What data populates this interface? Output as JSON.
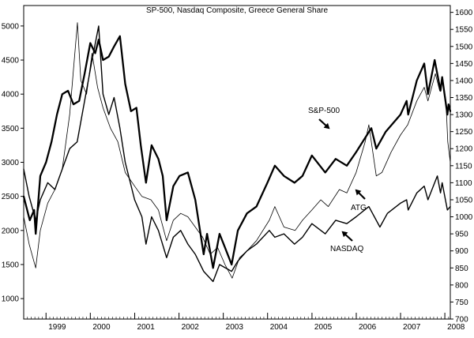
{
  "chart_data": {
    "type": "line",
    "title": "SP-500, Nasdaq Composite, Greece General Share",
    "x_range": [
      "1998-07-01",
      "2008-02-15"
    ],
    "x_ticks": [
      "1999",
      "2000",
      "2001",
      "2002",
      "2003",
      "2004",
      "2005",
      "2006",
      "2007",
      "2008"
    ],
    "left_axis": {
      "ylim": [
        700,
        5300
      ],
      "ticks": [
        "1000",
        "1500",
        "2000",
        "2500",
        "3000",
        "3500",
        "4000",
        "4500",
        "5000"
      ]
    },
    "right_axis": {
      "ylim": [
        700,
        1620
      ],
      "ticks": [
        "700",
        "750",
        "800",
        "850",
        "900",
        "950",
        "1000",
        "1050",
        "1100",
        "1150",
        "1200",
        "1250",
        "1300",
        "1350",
        "1400",
        "1450",
        "1500",
        "1550",
        "1600"
      ]
    },
    "grid": false,
    "annotations": [
      {
        "text": "S&P-500",
        "series": "S&P-500",
        "arrow": "down-right"
      },
      {
        "text": "ATG",
        "series": "ATG",
        "arrow": "up-left"
      },
      {
        "text": "NASDAQ",
        "series": "NASDAQ",
        "arrow": "up-left"
      }
    ],
    "series": [
      {
        "name": "S&P-500",
        "axis": "left",
        "style": "thick",
        "points": [
          [
            "1998-07-01",
            2500
          ],
          [
            "1998-08-20",
            2150
          ],
          [
            "1998-09-25",
            2300
          ],
          [
            "1998-10-08",
            1950
          ],
          [
            "1998-11-15",
            2800
          ],
          [
            "1999-01-01",
            3000
          ],
          [
            "1999-02-15",
            3300
          ],
          [
            "1999-04-01",
            3700
          ],
          [
            "1999-05-15",
            4000
          ],
          [
            "1999-07-01",
            4050
          ],
          [
            "1999-08-15",
            3850
          ],
          [
            "1999-10-01",
            3900
          ],
          [
            "1999-11-15",
            4300
          ],
          [
            "2000-01-01",
            4750
          ],
          [
            "2000-02-10",
            4600
          ],
          [
            "2000-03-10",
            4800
          ],
          [
            "2000-04-15",
            4500
          ],
          [
            "2000-06-01",
            4550
          ],
          [
            "2000-07-15",
            4700
          ],
          [
            "2000-09-01",
            4850
          ],
          [
            "2000-10-15",
            4150
          ],
          [
            "2000-12-01",
            3750
          ],
          [
            "2001-01-15",
            3800
          ],
          [
            "2001-02-20",
            3250
          ],
          [
            "2001-04-04",
            2700
          ],
          [
            "2001-05-20",
            3250
          ],
          [
            "2001-07-15",
            3050
          ],
          [
            "2001-08-20",
            2800
          ],
          [
            "2001-09-21",
            2150
          ],
          [
            "2001-11-15",
            2650
          ],
          [
            "2002-01-05",
            2800
          ],
          [
            "2002-03-15",
            2850
          ],
          [
            "2002-05-15",
            2450
          ],
          [
            "2002-07-23",
            1650
          ],
          [
            "2002-08-20",
            1950
          ],
          [
            "2002-10-09",
            1450
          ],
          [
            "2002-12-01",
            1950
          ],
          [
            "2003-01-15",
            1750
          ],
          [
            "2003-03-11",
            1500
          ],
          [
            "2003-05-01",
            2000
          ],
          [
            "2003-07-15",
            2250
          ],
          [
            "2003-10-01",
            2350
          ],
          [
            "2003-12-31",
            2700
          ],
          [
            "2004-03-01",
            2950
          ],
          [
            "2004-05-15",
            2800
          ],
          [
            "2004-08-10",
            2700
          ],
          [
            "2004-10-15",
            2800
          ],
          [
            "2004-12-31",
            3100
          ],
          [
            "2005-04-20",
            2850
          ],
          [
            "2005-07-15",
            3050
          ],
          [
            "2005-10-15",
            2950
          ],
          [
            "2005-12-31",
            3150
          ],
          [
            "2006-05-05",
            3500
          ],
          [
            "2006-06-15",
            3200
          ],
          [
            "2006-09-01",
            3450
          ],
          [
            "2006-12-31",
            3700
          ],
          [
            "2007-02-20",
            3900
          ],
          [
            "2007-03-05",
            3700
          ],
          [
            "2007-05-15",
            4200
          ],
          [
            "2007-07-15",
            4450
          ],
          [
            "2007-08-15",
            4000
          ],
          [
            "2007-10-09",
            4500
          ],
          [
            "2007-11-26",
            4050
          ],
          [
            "2007-12-10",
            4250
          ],
          [
            "2008-01-22",
            3700
          ],
          [
            "2008-02-01",
            3850
          ],
          [
            "2008-02-15",
            3750
          ]
        ]
      },
      {
        "name": "ATG",
        "axis": "left",
        "style": "thin",
        "points": [
          [
            "1998-07-01",
            2200
          ],
          [
            "1998-08-15",
            1800
          ],
          [
            "1998-10-08",
            1450
          ],
          [
            "1998-11-15",
            2000
          ],
          [
            "1999-01-15",
            2400
          ],
          [
            "1999-03-15",
            2600
          ],
          [
            "1999-05-15",
            2900
          ],
          [
            "1999-07-15",
            3700
          ],
          [
            "1999-09-17",
            5050
          ],
          [
            "1999-10-15",
            4200
          ],
          [
            "1999-12-01",
            4000
          ],
          [
            "2000-01-15",
            4600
          ],
          [
            "2000-03-01",
            4100
          ],
          [
            "2000-04-15",
            3800
          ],
          [
            "2000-06-15",
            3500
          ],
          [
            "2000-08-15",
            3300
          ],
          [
            "2000-10-15",
            2850
          ],
          [
            "2000-12-31",
            2650
          ],
          [
            "2001-03-01",
            2500
          ],
          [
            "2001-05-15",
            2450
          ],
          [
            "2001-07-15",
            2300
          ],
          [
            "2001-09-21",
            1850
          ],
          [
            "2001-11-15",
            2150
          ],
          [
            "2002-01-15",
            2250
          ],
          [
            "2002-03-15",
            2200
          ],
          [
            "2002-05-15",
            2050
          ],
          [
            "2002-07-15",
            1900
          ],
          [
            "2002-09-15",
            1650
          ],
          [
            "2002-11-15",
            1750
          ],
          [
            "2003-01-15",
            1500
          ],
          [
            "2003-03-15",
            1300
          ],
          [
            "2003-05-15",
            1600
          ],
          [
            "2003-07-15",
            1700
          ],
          [
            "2003-10-01",
            1850
          ],
          [
            "2004-01-15",
            2150
          ],
          [
            "2004-03-01",
            2350
          ],
          [
            "2004-05-15",
            2050
          ],
          [
            "2004-08-15",
            2000
          ],
          [
            "2004-10-15",
            2150
          ],
          [
            "2004-12-31",
            2300
          ],
          [
            "2005-03-15",
            2450
          ],
          [
            "2005-05-15",
            2350
          ],
          [
            "2005-08-15",
            2600
          ],
          [
            "2005-10-15",
            2550
          ],
          [
            "2005-12-31",
            2850
          ],
          [
            "2006-03-15",
            3300
          ],
          [
            "2006-04-15",
            3550
          ],
          [
            "2006-06-15",
            2800
          ],
          [
            "2006-08-01",
            2850
          ],
          [
            "2006-10-15",
            3150
          ],
          [
            "2006-12-31",
            3400
          ],
          [
            "2007-03-01",
            3550
          ],
          [
            "2007-05-15",
            3900
          ],
          [
            "2007-07-15",
            4100
          ],
          [
            "2007-08-15",
            3900
          ],
          [
            "2007-10-15",
            4300
          ],
          [
            "2007-11-20",
            4050
          ],
          [
            "2007-12-15",
            4200
          ],
          [
            "2008-01-10",
            3900
          ],
          [
            "2008-01-25",
            3300
          ],
          [
            "2008-02-15",
            3000
          ]
        ]
      },
      {
        "name": "NASDAQ",
        "axis": "left",
        "style": "medium",
        "points": [
          [
            "1998-07-01",
            2900
          ],
          [
            "1998-08-15",
            2500
          ],
          [
            "1998-10-08",
            2150
          ],
          [
            "1998-11-15",
            2450
          ],
          [
            "1999-01-15",
            2700
          ],
          [
            "1999-03-15",
            2600
          ],
          [
            "1999-05-15",
            2900
          ],
          [
            "1999-07-15",
            3200
          ],
          [
            "1999-09-15",
            3300
          ],
          [
            "1999-11-15",
            3900
          ],
          [
            "2000-01-15",
            4500
          ],
          [
            "2000-03-10",
            5000
          ],
          [
            "2000-04-15",
            4000
          ],
          [
            "2000-06-01",
            3700
          ],
          [
            "2000-07-15",
            3950
          ],
          [
            "2000-09-01",
            3500
          ],
          [
            "2000-10-15",
            3000
          ],
          [
            "2000-12-31",
            2450
          ],
          [
            "2001-03-01",
            2200
          ],
          [
            "2001-04-04",
            1800
          ],
          [
            "2001-05-20",
            2200
          ],
          [
            "2001-07-15",
            2000
          ],
          [
            "2001-09-21",
            1600
          ],
          [
            "2001-11-15",
            1900
          ],
          [
            "2002-01-15",
            2000
          ],
          [
            "2002-03-15",
            1800
          ],
          [
            "2002-05-15",
            1650
          ],
          [
            "2002-07-23",
            1400
          ],
          [
            "2002-10-09",
            1250
          ],
          [
            "2002-12-01",
            1500
          ],
          [
            "2003-03-11",
            1400
          ],
          [
            "2003-05-01",
            1550
          ],
          [
            "2003-07-15",
            1700
          ],
          [
            "2003-10-01",
            1800
          ],
          [
            "2004-01-15",
            2000
          ],
          [
            "2004-03-01",
            1900
          ],
          [
            "2004-05-15",
            1950
          ],
          [
            "2004-08-10",
            1800
          ],
          [
            "2004-10-15",
            1900
          ],
          [
            "2004-12-31",
            2100
          ],
          [
            "2005-04-20",
            1950
          ],
          [
            "2005-07-15",
            2150
          ],
          [
            "2005-10-15",
            2100
          ],
          [
            "2005-12-31",
            2200
          ],
          [
            "2006-04-15",
            2350
          ],
          [
            "2006-07-15",
            2050
          ],
          [
            "2006-09-15",
            2250
          ],
          [
            "2006-12-31",
            2400
          ],
          [
            "2007-02-20",
            2450
          ],
          [
            "2007-03-05",
            2300
          ],
          [
            "2007-05-15",
            2550
          ],
          [
            "2007-07-15",
            2650
          ],
          [
            "2007-08-15",
            2450
          ],
          [
            "2007-10-31",
            2800
          ],
          [
            "2007-11-26",
            2550
          ],
          [
            "2007-12-10",
            2700
          ],
          [
            "2008-01-22",
            2300
          ],
          [
            "2008-02-15",
            2350
          ]
        ]
      }
    ]
  }
}
